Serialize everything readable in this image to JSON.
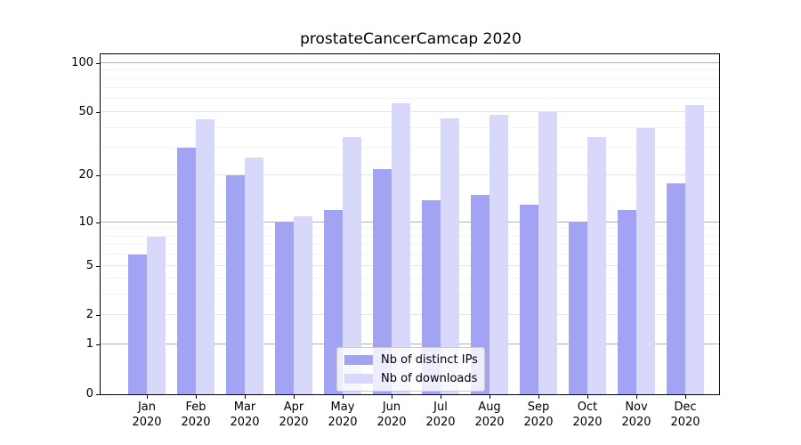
{
  "title": "prostateCancerCamcap 2020",
  "colors": {
    "ips_bar": "#a3a3f3",
    "downloads_bar": "#d8d8fa",
    "grid_major": "#b0b0b0",
    "grid_medium": "#e4e4e4",
    "grid_minor": "#f3f3f3",
    "axis": "#000000",
    "legend_border": "#cccccc"
  },
  "chart_data": {
    "type": "bar",
    "title": "prostateCancerCamcap 2020",
    "categories": [
      "Jan",
      "Feb",
      "Mar",
      "Apr",
      "May",
      "Jun",
      "Jul",
      "Aug",
      "Sep",
      "Oct",
      "Nov",
      "Dec"
    ],
    "year_label": "2020",
    "series": [
      {
        "name": "Nb of distinct IPs",
        "color": "#a3a3f3",
        "values": [
          6,
          30,
          20,
          10,
          12,
          22,
          14,
          15,
          13,
          10,
          12,
          18
        ]
      },
      {
        "name": "Nb of downloads",
        "color": "#d8d8fa",
        "values": [
          8,
          45,
          26,
          11,
          35,
          57,
          46,
          48,
          50,
          35,
          40,
          55
        ]
      }
    ],
    "xlabel": "",
    "ylabel": "",
    "y_scale": "log1p",
    "ylim": [
      0,
      113
    ],
    "y_ticks": [
      0,
      1,
      2,
      5,
      10,
      20,
      50,
      100
    ],
    "y_tick_labels": [
      "0",
      "1",
      "2",
      "5",
      "10",
      "20",
      "50",
      "100"
    ],
    "y_gridlines_major": [
      1,
      10,
      100
    ],
    "y_gridlines_medium": [
      2,
      5,
      20,
      50
    ],
    "y_gridlines_minor": [
      3,
      4,
      6,
      7,
      8,
      9,
      30,
      40,
      60,
      70,
      80,
      90
    ],
    "grid": true,
    "legend_position": "lower center"
  }
}
